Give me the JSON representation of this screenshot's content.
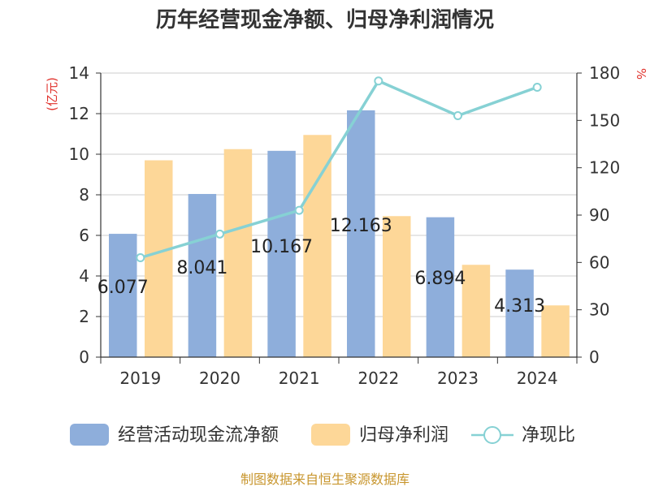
{
  "colors": {
    "cashflow": "#8eaedb",
    "profit": "#fdd798",
    "ratio": "#86d1d4",
    "grid": "#cccccc",
    "axis": "#333333",
    "unit": "#e0322c",
    "source": "#c8962e"
  },
  "chart_data": {
    "type": "bar",
    "title": "历年经营现金净额、归母净利润情况",
    "categories": [
      "2019",
      "2020",
      "2021",
      "2022",
      "2023",
      "2024"
    ],
    "series": [
      {
        "name": "经营活动现金流净额",
        "type": "bar",
        "axis": "left",
        "values": [
          6.077,
          8.041,
          10.167,
          12.163,
          6.894,
          4.313
        ],
        "labels": [
          "6.077",
          "8.041",
          "10.167",
          "12.163",
          "6.894",
          "4.313"
        ]
      },
      {
        "name": "归母净利润",
        "type": "bar",
        "axis": "left",
        "values": [
          9.7,
          10.25,
          10.95,
          6.95,
          4.55,
          2.55
        ]
      },
      {
        "name": "净现比",
        "type": "line",
        "axis": "right",
        "values": [
          63,
          78,
          93,
          175,
          153,
          171
        ]
      }
    ],
    "y_left": {
      "unit": "(亿元)",
      "min": 0,
      "max": 14,
      "ticks": [
        "0",
        "2",
        "4",
        "6",
        "8",
        "10",
        "12",
        "14"
      ]
    },
    "y_right": {
      "unit": "%",
      "min": 0,
      "max": 180,
      "ticks": [
        "0",
        "30",
        "60",
        "90",
        "120",
        "150",
        "180"
      ]
    },
    "legend_position": "bottom",
    "grid": true
  },
  "source": "制图数据来自恒生聚源数据库"
}
